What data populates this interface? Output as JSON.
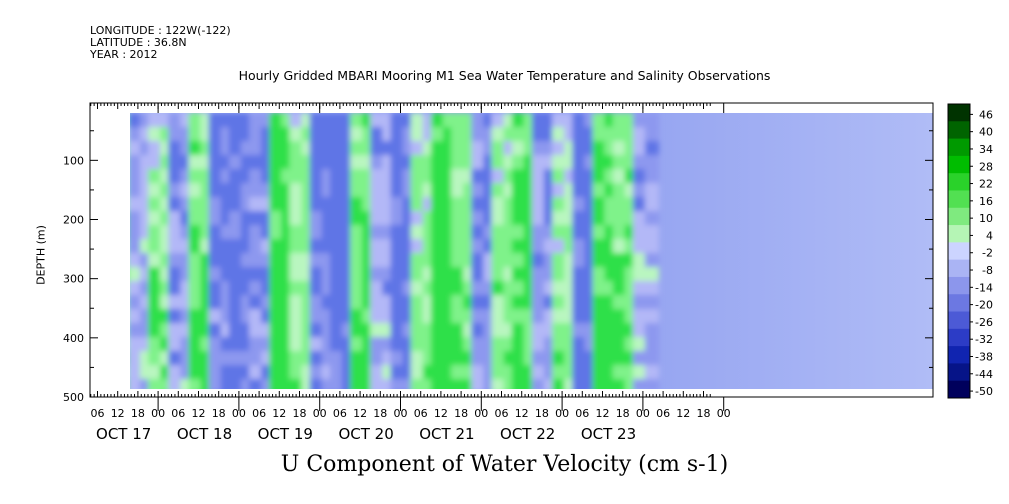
{
  "header": {
    "longitude": "LONGITUDE : 122W(-122)",
    "latitude": "LATITUDE : 36.8N",
    "year": "YEAR : 2012"
  },
  "chart_data": {
    "type": "heatmap",
    "title": "Hourly Gridded MBARI Mooring M1 Sea Water Temperature and Salinity Observations",
    "xlabel": "U Component of Water Velocity (cm s-1)",
    "ylabel": "DEPTH (m)",
    "y_ticks": [
      100,
      200,
      300,
      400,
      500
    ],
    "y_range": [
      0,
      500
    ],
    "hour_ticks": [
      "06",
      "12",
      "18",
      "00",
      "06",
      "12",
      "18",
      "00",
      "06",
      "12",
      "18",
      "00",
      "06",
      "12",
      "18",
      "00",
      "06",
      "12",
      "18",
      "00",
      "06",
      "12",
      "18",
      "00",
      "06",
      "12",
      "18",
      "00",
      "06",
      "12",
      "18",
      "00"
    ],
    "day_labels": [
      "OCT 17",
      "OCT 18",
      "OCT 19",
      "OCT 20",
      "OCT 21",
      "OCT 22",
      "OCT 23"
    ],
    "colorbar_levels": [
      "46",
      "40",
      "34",
      "28",
      "22",
      "16",
      "10",
      "4",
      "-2",
      "-8",
      "-14",
      "-20",
      "-26",
      "-32",
      "-38",
      "-44",
      "-50"
    ],
    "colorbar_colors": [
      "#003300",
      "#006400",
      "#009a00",
      "#00bd00",
      "#2ad22a",
      "#52e052",
      "#7fea7f",
      "#b5f5b5",
      "#ccd4ff",
      "#aab4f4",
      "#8c96ec",
      "#6c78e2",
      "#4c5ad6",
      "#2c3cc6",
      "#1024b0",
      "#061488",
      "#00005c"
    ],
    "field_colors": {
      "strong_positive": "#2ee04a",
      "positive": "#7ff28a",
      "weak_positive": "#b9f6c0",
      "weak_negative": "#b3b8f7",
      "negative": "#8d98ef",
      "strong_negative": "#5f74e6"
    },
    "column_means": [
      {
        "time_hours": 12,
        "value": 6
      },
      {
        "time_hours": 18,
        "value": -3
      },
      {
        "time_hours": 24,
        "value": 4
      },
      {
        "time_hours": 30,
        "value": -6
      },
      {
        "time_hours": 36,
        "value": 8
      },
      {
        "time_hours": 42,
        "value": -10
      },
      {
        "time_hours": 48,
        "value": -14
      },
      {
        "time_hours": 54,
        "value": -8
      },
      {
        "time_hours": 60,
        "value": 14
      },
      {
        "time_hours": 66,
        "value": 4
      },
      {
        "time_hours": 72,
        "value": -12
      },
      {
        "time_hours": 78,
        "value": -16
      },
      {
        "time_hours": 84,
        "value": 10
      },
      {
        "time_hours": 90,
        "value": -4
      },
      {
        "time_hours": 96,
        "value": -12
      },
      {
        "time_hours": 102,
        "value": 2
      },
      {
        "time_hours": 108,
        "value": 18
      },
      {
        "time_hours": 114,
        "value": 6
      },
      {
        "time_hours": 120,
        "value": -8
      },
      {
        "time_hours": 126,
        "value": 4
      },
      {
        "time_hours": 132,
        "value": 12
      },
      {
        "time_hours": 138,
        "value": -6
      },
      {
        "time_hours": 144,
        "value": 2
      },
      {
        "time_hours": 150,
        "value": -14
      },
      {
        "time_hours": 156,
        "value": 14
      },
      {
        "time_hours": 162,
        "value": 8
      },
      {
        "time_hours": 168,
        "value": -4
      }
    ]
  }
}
